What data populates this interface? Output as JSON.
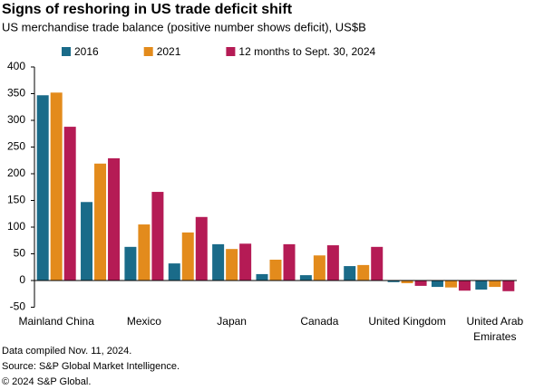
{
  "chart_data": {
    "type": "bar",
    "title": "Signs of reshoring in US trade deficit shift",
    "subtitle": "US merchandise trade balance (positive number shows deficit), US$B",
    "categories": [
      "Mainland China",
      null,
      "Mexico",
      null,
      "Japan",
      null,
      "Canada",
      null,
      "United Kingdom",
      null,
      "United Arab Emirates"
    ],
    "series": [
      {
        "name": "2016",
        "color": "#1a6b89",
        "values": [
          347,
          147,
          63,
          32,
          68,
          12,
          10,
          27,
          -3,
          -12,
          -17
        ]
      },
      {
        "name": "2021",
        "color": "#e38b1c",
        "values": [
          352,
          219,
          105,
          90,
          59,
          39,
          47,
          29,
          -5,
          -13,
          -12
        ]
      },
      {
        "name": "12 months to Sept. 30, 2024",
        "color": "#b51b55",
        "values": [
          288,
          229,
          166,
          119,
          69,
          68,
          66,
          63,
          -10,
          -19,
          -20
        ]
      }
    ],
    "ylim": [
      -50,
      400
    ],
    "yticks": [
      -50,
      0,
      50,
      100,
      150,
      200,
      250,
      300,
      350,
      400
    ],
    "notes": [
      "Data compiled Nov. 11, 2024.",
      "Source: S&P Global Market Intelligence.",
      "© 2024 S&P Global."
    ]
  }
}
